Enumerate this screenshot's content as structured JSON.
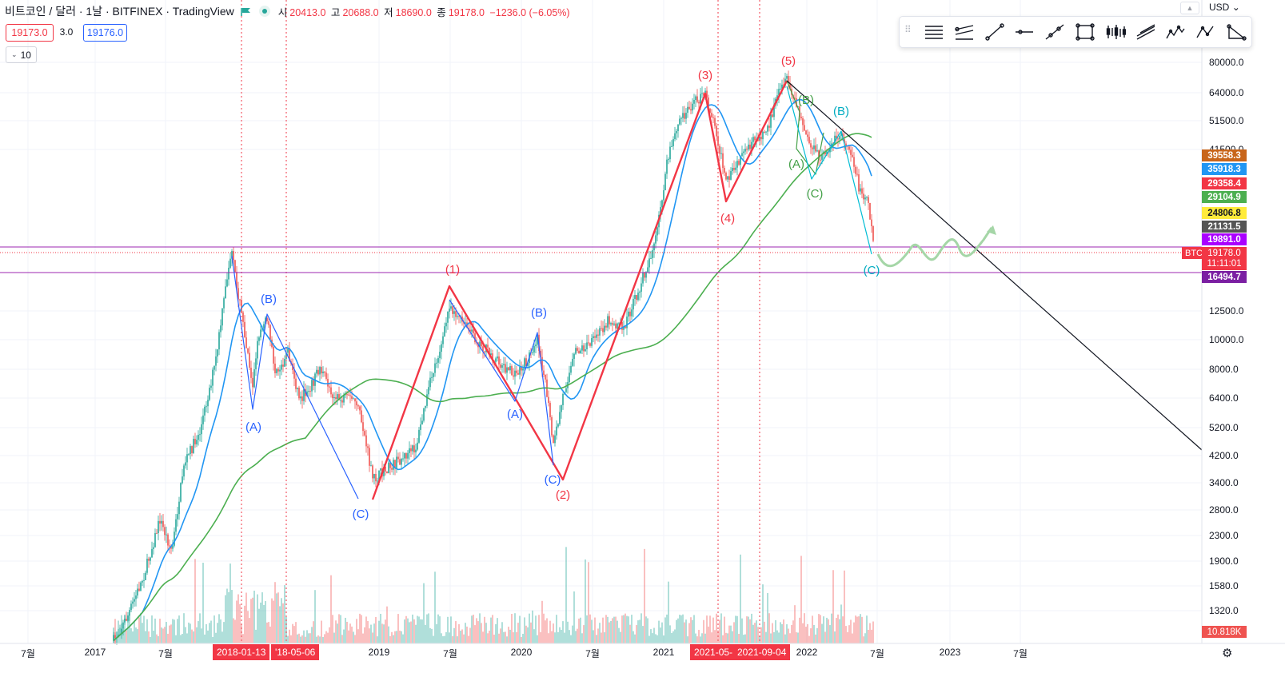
{
  "header": {
    "symbol_title": "비트코인 / 달러 · 1날 · BITFINEX · TradingView",
    "ohlc": {
      "open_label": "시",
      "open": "20413.0",
      "high_label": "고",
      "high": "20688.0",
      "low_label": "저",
      "low": "18690.0",
      "close_label": "종",
      "close": "19178.0",
      "change": "−1236.0 (−6.05%)"
    }
  },
  "trade": {
    "sell": "19173.0",
    "spread": "3.0",
    "buy": "19176.0",
    "qty": "10"
  },
  "currency": "USD",
  "price_axis": [
    "80000.0",
    "64000.0",
    "51500.0",
    "41500.0",
    "12500.0",
    "10000.0",
    "8000.0",
    "6400.0",
    "5200.0",
    "4200.0",
    "3400.0",
    "2800.0",
    "2300.0",
    "1900.0",
    "1580.0",
    "1320.0"
  ],
  "price_badges": [
    {
      "value": "39558.3",
      "color": "#c8651a"
    },
    {
      "value": "35918.3",
      "color": "#2196f3"
    },
    {
      "value": "29358.4",
      "color": "#f23645"
    },
    {
      "value": "29104.9",
      "color": "#4caf50"
    },
    {
      "value": "24806.8",
      "color": "#ffeb3b"
    },
    {
      "value": "21131.5",
      "color": "#555555"
    },
    {
      "value": "19891.0",
      "color": "#aa00ff"
    },
    {
      "value": "16494.7",
      "color": "#7b1fa2"
    }
  ],
  "last_price": {
    "value": "19178.0",
    "countdown": "11:11:01",
    "symbol_tag": "BTCUSD"
  },
  "volume_badge": "10.818K",
  "time_axis": [
    "7월",
    "2017",
    "7월",
    "2019",
    "7월",
    "2020",
    "7월",
    "2021",
    "2022",
    "7월",
    "2023",
    "7월"
  ],
  "time_red_labels": [
    "2018-01-13",
    "'18-05-06",
    "2021-05-",
    "2021-09-04"
  ],
  "wave_labels": {
    "primary": [
      "(1)",
      "(2)",
      "(3)",
      "(4)",
      "(5)"
    ],
    "blue_2018": [
      "(A)",
      "(B)",
      "(C)"
    ],
    "blue_2020": [
      "(A)",
      "(B)",
      "(C)"
    ],
    "green_2021": [
      "(A)",
      "(B)",
      "(C)"
    ],
    "cyan_2022": [
      "(B)",
      "(C)"
    ]
  },
  "toolbar_tools": [
    "horizontal-lines-icon",
    "parallel-channel-icon",
    "trend-line-icon",
    "horizontal-ray-icon",
    "extended-line-icon",
    "rectangle-icon",
    "bars-pattern-icon",
    "pitchfork-icon",
    "elliott-wave-icon",
    "abcd-pattern-icon",
    "triangle-pattern-icon"
  ],
  "colors": {
    "up": "#26a69a",
    "down": "#ef5350",
    "ma_red": "#f23645",
    "ma_blue": "#2196f3",
    "ma_brown": "#c8651a",
    "ma_green": "#4caf50",
    "level_line": "#9c27b0"
  }
}
